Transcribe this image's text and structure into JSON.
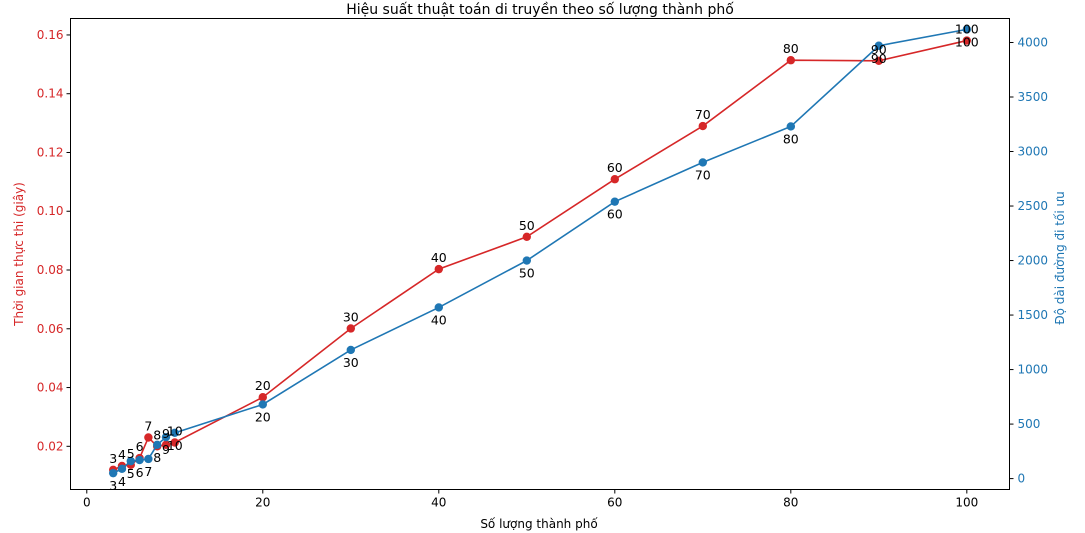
{
  "chart_data": {
    "type": "line",
    "title": "Hiệu suất thuật toán di truyền theo số lượng thành phố",
    "xlabel": "Số lượng thành phố",
    "ylabel_left": "Thời gian thực thi (giây)",
    "ylabel_right": "Độ dài đường đi tối ưu",
    "xlim": [
      -1.85,
      104.85
    ],
    "ylim_left": [
      0.0053,
      0.1656
    ],
    "ylim_right": [
      -100,
      4220
    ],
    "x_ticks": [
      0,
      20,
      40,
      60,
      80,
      100
    ],
    "y_ticks_left": [
      0.02,
      0.04,
      0.06,
      0.08,
      0.1,
      0.12,
      0.14,
      0.16
    ],
    "y_ticks_right": [
      0,
      500,
      1000,
      1500,
      2000,
      2500,
      3000,
      3500,
      4000
    ],
    "grid": false,
    "x": [
      3,
      4,
      5,
      6,
      7,
      8,
      9,
      10,
      20,
      30,
      40,
      50,
      60,
      70,
      80,
      90,
      100
    ],
    "series": [
      {
        "axis": "left",
        "color": "#d62728",
        "label_position": "above",
        "values": [
          0.012,
          0.0133,
          0.0137,
          0.016,
          0.023,
          0.02,
          0.0205,
          0.0213,
          0.0367,
          0.0601,
          0.0803,
          0.0913,
          0.1109,
          0.129,
          0.1514,
          0.1512,
          0.1581
        ]
      },
      {
        "axis": "right",
        "color": "#1f77b4",
        "label_position": "below",
        "values": [
          50,
          90,
          160,
          170,
          180,
          310,
          380,
          420,
          680,
          1180,
          1570,
          2000,
          2540,
          2900,
          3230,
          3970,
          4120
        ]
      }
    ]
  }
}
